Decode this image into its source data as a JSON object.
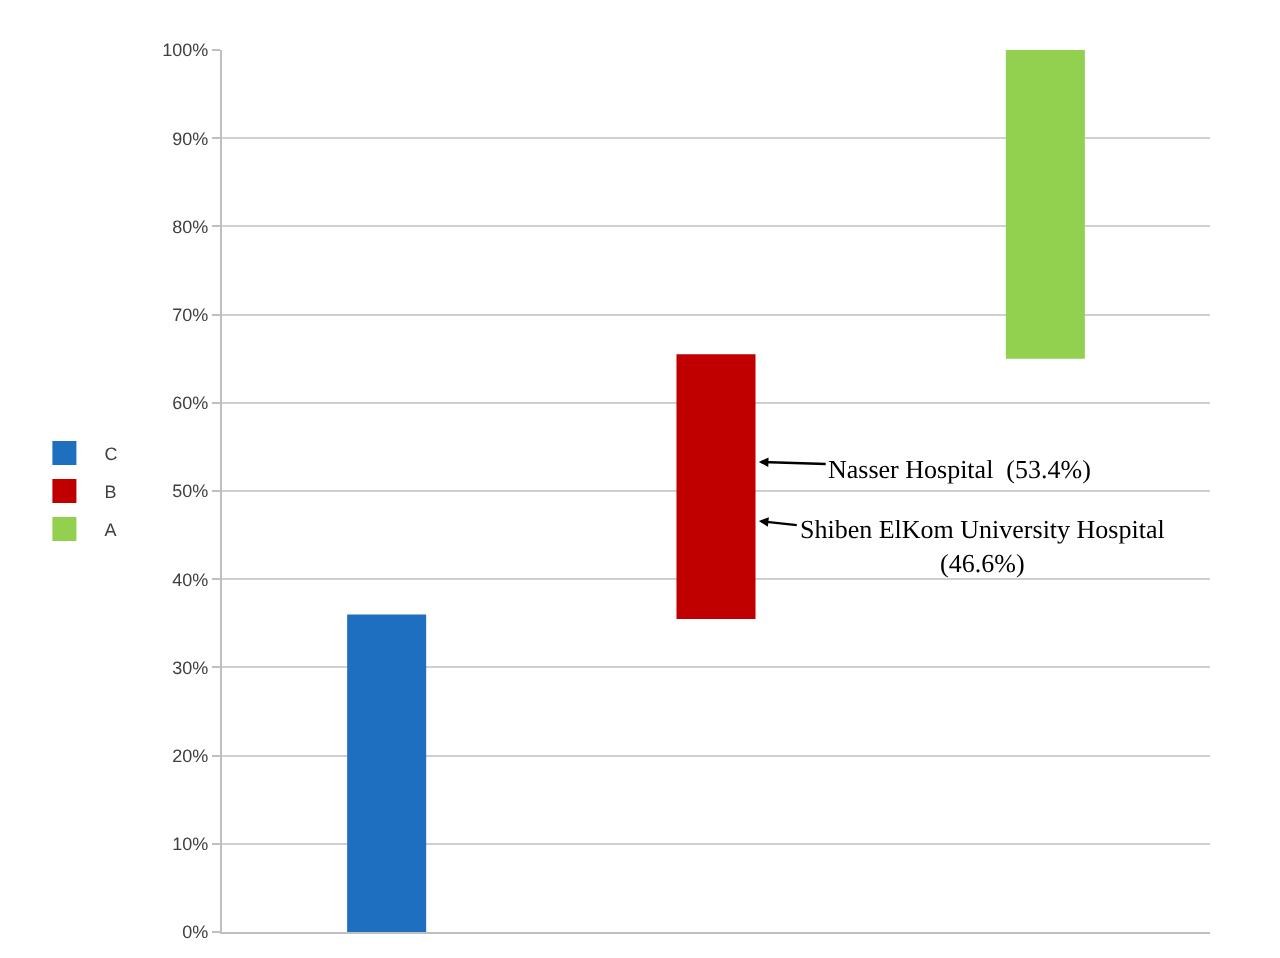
{
  "chart_data": {
    "type": "bar",
    "categories": [
      null,
      null,
      null
    ],
    "series": [
      {
        "name": "C",
        "color": "#1f6fc0",
        "values": [
          36,
          null,
          null
        ],
        "base": [
          0,
          null,
          null
        ]
      },
      {
        "name": "B",
        "color": "#c00000",
        "values": [
          null,
          30,
          null
        ],
        "base": [
          null,
          35.5,
          null
        ]
      },
      {
        "name": "A",
        "color": "#92d050",
        "values": [
          null,
          null,
          35
        ],
        "base": [
          null,
          null,
          65
        ]
      }
    ],
    "ylim": [
      0,
      100
    ],
    "yticks": [
      {
        "value": 0,
        "label": "0%"
      },
      {
        "value": 10,
        "label": "10%"
      },
      {
        "value": 20,
        "label": "20%"
      },
      {
        "value": 30,
        "label": "30%"
      },
      {
        "value": 40,
        "label": "40%"
      },
      {
        "value": 50,
        "label": "50%"
      },
      {
        "value": 60,
        "label": "60%"
      },
      {
        "value": 70,
        "label": "70%"
      },
      {
        "value": 80,
        "label": "80%"
      },
      {
        "value": 90,
        "label": "90%"
      },
      {
        "value": 100,
        "label": "100%"
      }
    ],
    "annotations": [
      "Nasser Hospital  (53.4%)",
      "Shiben ElKom University Hospital\n(46.6%)"
    ],
    "grid": "y",
    "legend": "left"
  }
}
